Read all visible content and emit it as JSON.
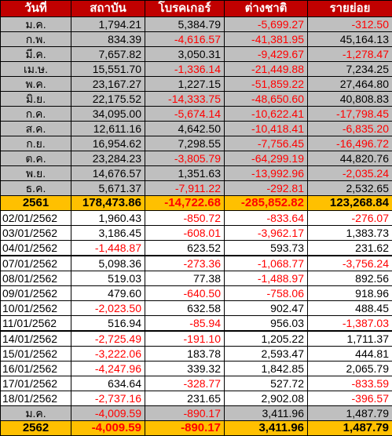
{
  "headers": [
    "วันที่",
    "สถาบัน",
    "โบรคเกอร์",
    "ต่างชาติ",
    "รายย่อย"
  ],
  "monthly_rows": [
    {
      "label": "ม.ค.",
      "values": [
        "1,794.21",
        "5,384.79",
        "-5,699.27",
        "-312.50"
      ]
    },
    {
      "label": "ก.พ.",
      "values": [
        "834.39",
        "-4,616.57",
        "-41,381.95",
        "45,164.13"
      ]
    },
    {
      "label": "มี.ค.",
      "values": [
        "7,657.82",
        "3,050.31",
        "-9,429.67",
        "-1,278.47"
      ]
    },
    {
      "label": "เม.ษ.",
      "values": [
        "15,551.70",
        "-1,336.14",
        "-21,449.88",
        "7,234.25"
      ]
    },
    {
      "label": "พ.ค.",
      "values": [
        "23,167.27",
        "1,227.15",
        "-51,859.22",
        "27,464.80"
      ]
    },
    {
      "label": "มิ.ย.",
      "values": [
        "22,175.52",
        "-14,333.75",
        "-48,650.60",
        "40,808.83"
      ]
    },
    {
      "label": "ก.ค.",
      "values": [
        "34,095.00",
        "-5,674.14",
        "-10,622.41",
        "-17,798.45"
      ]
    },
    {
      "label": "ส.ค.",
      "values": [
        "12,611.16",
        "4,642.50",
        "-10,418.41",
        "-6,835.20"
      ]
    },
    {
      "label": "ก.ย.",
      "values": [
        "16,954.62",
        "7,298.55",
        "-7,756.45",
        "-16,496.72"
      ]
    },
    {
      "label": "ต.ค.",
      "values": [
        "23,284.23",
        "-3,805.79",
        "-64,299.19",
        "44,820.76"
      ]
    },
    {
      "label": "พ.ย.",
      "values": [
        "14,676.57",
        "1,351.63",
        "-13,992.96",
        "-2,035.24"
      ]
    },
    {
      "label": "ธ.ค.",
      "values": [
        "5,671.37",
        "-7,911.22",
        "-292.81",
        "2,532.65"
      ]
    }
  ],
  "total_2561": {
    "label": "2561",
    "values": [
      "178,473.86",
      "-14,722.68",
      "-285,852.82",
      "123,268.84"
    ]
  },
  "daily_rows": [
    {
      "label": "02/01/2562",
      "values": [
        "1,960.43",
        "-850.72",
        "-833.64",
        "-276.07"
      ],
      "gap": false
    },
    {
      "label": "03/01/2562",
      "values": [
        "3,186.45",
        "-608.01",
        "-3,962.17",
        "1,383.73"
      ],
      "gap": false
    },
    {
      "label": "04/01/2562",
      "values": [
        "-1,448.87",
        "623.52",
        "593.73",
        "231.62"
      ],
      "gap": false
    },
    {
      "label": "07/01/2562",
      "values": [
        "5,098.36",
        "-273.36",
        "-1,068.77",
        "-3,756.24"
      ],
      "gap": true
    },
    {
      "label": "08/01/2562",
      "values": [
        "519.03",
        "77.38",
        "-1,488.97",
        "892.56"
      ],
      "gap": false
    },
    {
      "label": "09/01/2562",
      "values": [
        "479.60",
        "-640.50",
        "-758.06",
        "918.96"
      ],
      "gap": false
    },
    {
      "label": "10/01/2562",
      "values": [
        "-2,023.50",
        "632.58",
        "902.47",
        "488.45"
      ],
      "gap": false
    },
    {
      "label": "11/01/2562",
      "values": [
        "516.94",
        "-85.94",
        "956.03",
        "-1,387.03"
      ],
      "gap": false
    },
    {
      "label": "14/01/2562",
      "values": [
        "-2,725.49",
        "-191.10",
        "1,205.22",
        "1,711.37"
      ],
      "gap": true
    },
    {
      "label": "15/01/2562",
      "values": [
        "-3,222.06",
        "183.78",
        "2,593.47",
        "444.81"
      ],
      "gap": false
    },
    {
      "label": "16/01/2562",
      "values": [
        "-4,247.96",
        "339.32",
        "1,842.85",
        "2,065.79"
      ],
      "gap": false
    },
    {
      "label": "17/01/2562",
      "values": [
        "634.64",
        "-328.77",
        "527.72",
        "-833.59"
      ],
      "gap": false
    },
    {
      "label": "18/01/2562",
      "values": [
        "-2,737.16",
        "231.65",
        "2,902.08",
        "-396.57"
      ],
      "gap": false
    }
  ],
  "month_sum_2562": {
    "label": "ม.ค.",
    "values": [
      "-4,009.59",
      "-890.17",
      "3,411.96",
      "1,487.79"
    ]
  },
  "total_2562": {
    "label": "2562",
    "values": [
      "-4,009.59",
      "-890.17",
      "3,411.96",
      "1,487.79"
    ]
  },
  "colors": {
    "header_bg": "#c00000",
    "monthly_bg": "#bfbfbf",
    "total_bg": "#ffc000",
    "negative": "#ff0000"
  }
}
